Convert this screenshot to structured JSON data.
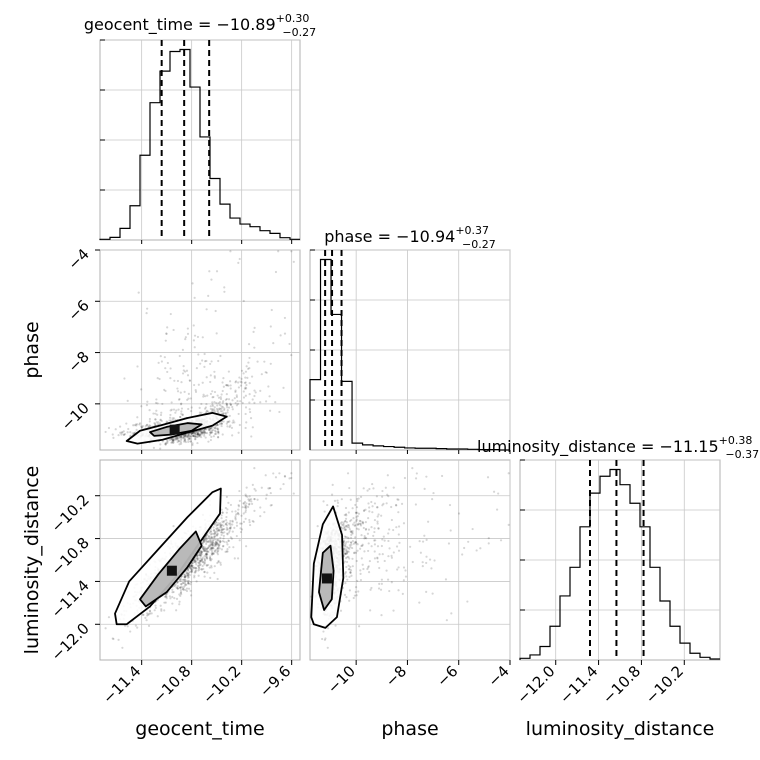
{
  "chart_data": {
    "type": "corner",
    "parameters": [
      "geocent_time",
      "phase",
      "luminosity_distance"
    ],
    "titles": {
      "geocent_time": {
        "param": "geocent_time",
        "median": "−10.89",
        "plus": "+0.30",
        "minus": "−0.27"
      },
      "phase": {
        "param": "phase",
        "median": "−10.94",
        "plus": "+0.37",
        "minus": "−0.27"
      },
      "luminosity_distance": {
        "param": "luminosity_distance",
        "median": "−11.15",
        "plus": "+0.38",
        "minus": "−0.37"
      }
    },
    "ranges": {
      "geocent_time": [
        -11.9,
        -9.5
      ],
      "phase": [
        -11.8,
        -4.0
      ],
      "luminosity_distance": [
        -12.5,
        -9.7
      ]
    },
    "ticks": {
      "geocent_time": {
        "values": [
          -11.4,
          -10.8,
          -10.2,
          -9.6
        ],
        "labels": [
          "−11.4",
          "−10.8",
          "−10.2",
          "−9.6"
        ]
      },
      "phase": {
        "values": [
          -10,
          -8,
          -6,
          -4
        ],
        "labels": [
          "−10",
          "−8",
          "−6",
          "−4"
        ]
      },
      "phase_y": {
        "values": [
          -10,
          -8,
          -6,
          -4
        ],
        "labels": [
          "−10",
          "−8",
          "−6",
          "−4"
        ]
      },
      "luminosity_distance": {
        "values": [
          -12.0,
          -11.4,
          -10.8,
          -10.2
        ],
        "labels": [
          "−12.0",
          "−11.4",
          "−10.8",
          "−10.2"
        ]
      },
      "luminosity_distance_y": {
        "values": [
          -12.0,
          -11.4,
          -10.8,
          -10.2
        ],
        "labels": [
          "−12.0",
          "−11.4",
          "−10.8",
          "−10.2"
        ]
      }
    },
    "quantiles": {
      "geocent_time": [
        -11.16,
        -10.89,
        -10.59
      ],
      "phase": [
        -11.21,
        -10.94,
        -10.57
      ],
      "luminosity_distance": [
        -11.52,
        -11.15,
        -10.77
      ]
    },
    "histograms": {
      "geocent_time": {
        "edges": [
          -11.9,
          -11.78,
          -11.66,
          -11.54,
          -11.42,
          -11.3,
          -11.18,
          -11.06,
          -10.94,
          -10.82,
          -10.7,
          -10.58,
          -10.46,
          -10.34,
          -10.22,
          -10.1,
          -9.98,
          -9.86,
          -9.74,
          -9.62,
          -9.5
        ],
        "counts": [
          0.2,
          0.8,
          3.5,
          10.3,
          25.5,
          41.3,
          50.8,
          56.7,
          57.3,
          46.0,
          31.0,
          18.5,
          10.8,
          6.6,
          4.8,
          4.0,
          2.8,
          2.0,
          0.7,
          0.2
        ]
      },
      "phase": {
        "edges": [
          -11.8,
          -11.39,
          -10.98,
          -10.57,
          -10.16,
          -9.75,
          -9.34,
          -8.93,
          -8.52,
          -8.11,
          -7.7,
          -7.29,
          -6.88,
          -6.47,
          -6.06,
          -5.65,
          -5.24,
          -4.83,
          -4.42,
          -4.01
        ],
        "counts": [
          20.5,
          55.5,
          39.5,
          20.0,
          2.0,
          1.5,
          1.2,
          1.0,
          0.8,
          0.6,
          0.5,
          0.5,
          0.4,
          0.3,
          0.3,
          0.2,
          0.1,
          0.1,
          0.0
        ]
      },
      "luminosity_distance": {
        "edges": [
          -12.5,
          -12.36,
          -12.22,
          -12.08,
          -11.94,
          -11.8,
          -11.66,
          -11.52,
          -11.38,
          -11.24,
          -11.1,
          -10.96,
          -10.82,
          -10.68,
          -10.54,
          -10.4,
          -10.26,
          -10.12,
          -9.98,
          -9.84,
          -9.7
        ],
        "counts": [
          0.5,
          1.5,
          4.0,
          10.0,
          19.0,
          27.5,
          39.5,
          49.5,
          54.5,
          56.5,
          52.0,
          46.5,
          39.5,
          27.5,
          17.5,
          10.0,
          5.0,
          2.0,
          0.8,
          0.3
        ]
      }
    },
    "pair_contours": {
      "phase_vs_geocent_time": [
        [
          [
            -11.58,
            -11.45
          ],
          [
            -11.42,
            -11.05
          ],
          [
            -11.15,
            -10.82
          ],
          [
            -10.85,
            -10.55
          ],
          [
            -10.55,
            -10.35
          ],
          [
            -10.38,
            -10.5
          ],
          [
            -10.55,
            -10.85
          ],
          [
            -10.85,
            -11.12
          ],
          [
            -11.15,
            -11.4
          ],
          [
            -11.45,
            -11.55
          ]
        ],
        [
          [
            -11.3,
            -11.1
          ],
          [
            -11.1,
            -10.9
          ],
          [
            -10.85,
            -10.75
          ],
          [
            -10.68,
            -10.8
          ],
          [
            -10.8,
            -11.05
          ],
          [
            -11.05,
            -11.2
          ],
          [
            -11.25,
            -11.25
          ]
        ]
      ],
      "luminosity_distance_vs_geocent_time": [
        [
          [
            -11.72,
            -11.85
          ],
          [
            -11.55,
            -11.4
          ],
          [
            -11.2,
            -10.95
          ],
          [
            -10.85,
            -10.5
          ],
          [
            -10.55,
            -10.15
          ],
          [
            -10.45,
            -10.1
          ],
          [
            -10.46,
            -10.45
          ],
          [
            -10.7,
            -10.85
          ],
          [
            -11.0,
            -11.35
          ],
          [
            -11.3,
            -11.75
          ],
          [
            -11.58,
            -12.0
          ],
          [
            -11.7,
            -12.0
          ]
        ],
        [
          [
            -11.42,
            -11.65
          ],
          [
            -11.2,
            -11.3
          ],
          [
            -10.95,
            -10.95
          ],
          [
            -10.75,
            -10.7
          ],
          [
            -10.68,
            -10.9
          ],
          [
            -10.85,
            -11.2
          ],
          [
            -11.1,
            -11.55
          ],
          [
            -11.35,
            -11.75
          ]
        ]
      ],
      "luminosity_distance_vs_phase": [
        [
          [
            -11.75,
            -11.9
          ],
          [
            -11.65,
            -11.15
          ],
          [
            -11.3,
            -10.6
          ],
          [
            -10.9,
            -10.35
          ],
          [
            -10.55,
            -10.75
          ],
          [
            -10.5,
            -11.35
          ],
          [
            -10.75,
            -11.9
          ],
          [
            -11.2,
            -12.05
          ],
          [
            -11.65,
            -12.0
          ]
        ],
        [
          [
            -11.45,
            -11.55
          ],
          [
            -11.3,
            -11.0
          ],
          [
            -11.0,
            -10.9
          ],
          [
            -10.88,
            -11.25
          ],
          [
            -10.95,
            -11.65
          ],
          [
            -11.25,
            -11.8
          ]
        ]
      ]
    },
    "xlabels": [
      "geocent_time",
      "phase",
      "luminosity_distance"
    ],
    "ylabels": [
      "phase",
      "luminosity_distance"
    ],
    "grid": true
  }
}
